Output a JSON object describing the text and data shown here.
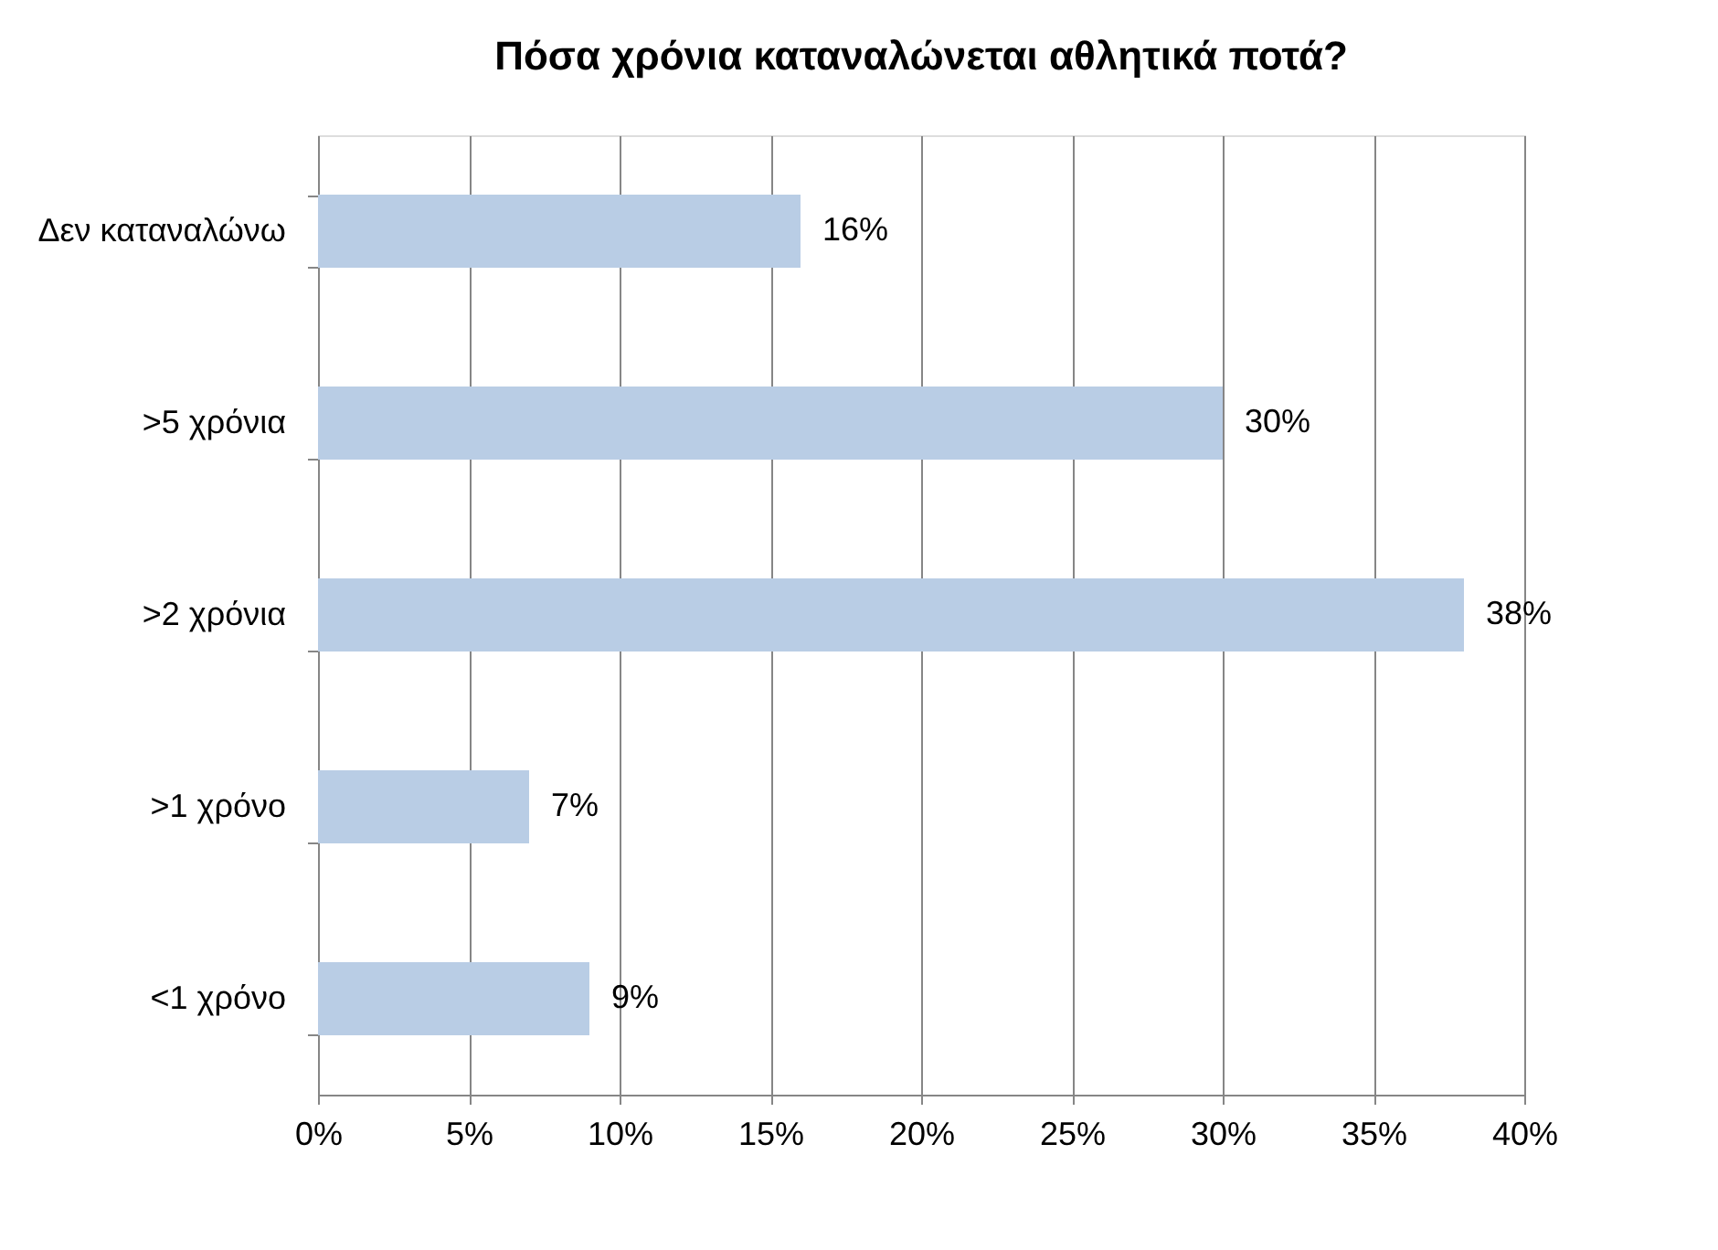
{
  "chart_data": {
    "type": "bar",
    "orientation": "horizontal",
    "title": "Πόσα χρόνια καταναλώνεται αθλητικά ποτά?",
    "categories": [
      "Δεν καταναλώνω",
      ">5 χρόνια",
      ">2 χρόνια",
      ">1 χρόνο",
      "<1 χρόνο"
    ],
    "values": [
      16,
      30,
      38,
      7,
      9
    ],
    "value_labels": [
      "16%",
      "30%",
      "38%",
      "7%",
      "9%"
    ],
    "color": "#b9cde5",
    "xlim": [
      0,
      40
    ],
    "xticks": [
      {
        "value": 0,
        "label": "0%"
      },
      {
        "value": 5,
        "label": "5%"
      },
      {
        "value": 10,
        "label": "10%"
      },
      {
        "value": 15,
        "label": "15%"
      },
      {
        "value": 20,
        "label": "20%"
      },
      {
        "value": 25,
        "label": "25%"
      },
      {
        "value": 30,
        "label": "30%"
      },
      {
        "value": 35,
        "label": "35%"
      },
      {
        "value": 40,
        "label": "40%"
      }
    ],
    "grid": "x"
  }
}
